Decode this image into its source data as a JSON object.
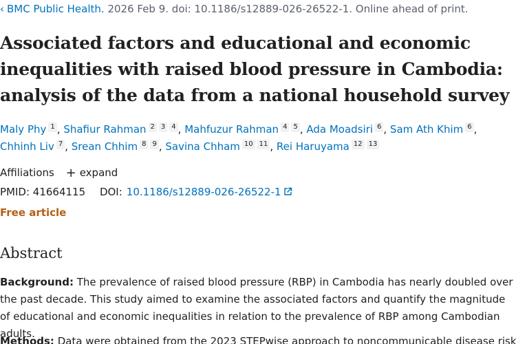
{
  "citation": {
    "journal": "BMC Public Health.",
    "details": "2026 Feb 9. doi: 10.1186/s12889-026-26522-1. Online ahead of print."
  },
  "article": {
    "title": "Associated factors and educational and economic inequalities with raised blood pressure in Cambodia: analysis of the data from a national household survey"
  },
  "authors": [
    {
      "name": "Maly Phy",
      "refs": [
        "1"
      ]
    },
    {
      "name": "Shafiur Rahman",
      "refs": [
        "2",
        "3",
        "4"
      ]
    },
    {
      "name": "Mahfuzur Rahman",
      "refs": [
        "4",
        "5"
      ]
    },
    {
      "name": "Ada Moadsiri",
      "refs": [
        "6"
      ]
    },
    {
      "name": "Sam Ath Khim",
      "refs": [
        "6"
      ]
    },
    {
      "name": "Chhinh Liv",
      "refs": [
        "7"
      ]
    },
    {
      "name": "Srean Chhim",
      "refs": [
        "8",
        "9"
      ]
    },
    {
      "name": "Savina Chham",
      "refs": [
        "10",
        "11"
      ]
    },
    {
      "name": "Rei Haruyama",
      "refs": [
        "12",
        "13"
      ]
    }
  ],
  "affiliations": {
    "label": "Affiliations",
    "expand_label": "expand"
  },
  "identifiers": {
    "pmid_label": "PMID:",
    "pmid": "41664115",
    "doi_label": "DOI:",
    "doi": "10.1186/s12889-026-26522-1"
  },
  "access": {
    "free_label": "Free article"
  },
  "abstract": {
    "heading": "Abstract",
    "background_label": "Background:",
    "background_text": "The prevalence of raised blood pressure (RBP) in Cambodia has nearly doubled over the past decade. This study aimed to examine the associated factors and quantify the magnitude of educational and economic inequalities in relation to the prevalence of RBP among Cambodian adults.",
    "methods_label": "Methods:",
    "methods_text": "Data were obtained from the 2023 STEPwise approach to noncommunicable disease risk"
  },
  "colors": {
    "link": "#0071bc",
    "free_article": "#b65f13",
    "text": "#212121",
    "muted": "#5b616b"
  }
}
